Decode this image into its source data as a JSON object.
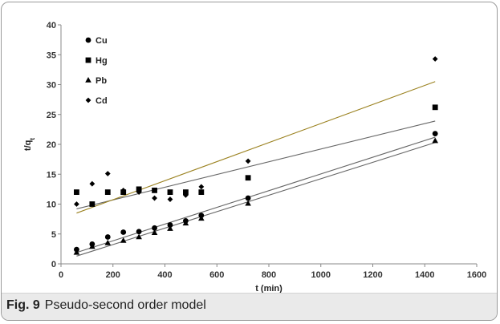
{
  "caption": {
    "label": "Fig. 9",
    "text": "Pseudo-second order model"
  },
  "chart_data": {
    "type": "scatter",
    "title": "",
    "xlabel": "t (min)",
    "ylabel": "t/q_t",
    "xlim": [
      0,
      1600
    ],
    "ylim": [
      0,
      40
    ],
    "xticks": [
      0,
      200,
      400,
      600,
      800,
      1000,
      1200,
      1400,
      1600
    ],
    "yticks": [
      0,
      5,
      10,
      15,
      20,
      25,
      30,
      35,
      40
    ],
    "grid": false,
    "legend_position": "top-left",
    "series": [
      {
        "name": "Cu",
        "marker": "circle",
        "x": [
          60,
          120,
          180,
          240,
          300,
          360,
          420,
          480,
          540,
          720,
          1440
        ],
        "y": [
          2.4,
          3.3,
          4.5,
          5.3,
          5.4,
          6.0,
          6.5,
          7.2,
          8.1,
          11.0,
          21.8
        ],
        "fit": {
          "x": [
            60,
            1440
          ],
          "y": [
            1.9,
            21.2
          ],
          "color": "#666666"
        }
      },
      {
        "name": "Hg",
        "marker": "square",
        "x": [
          60,
          120,
          180,
          240,
          300,
          360,
          420,
          480,
          540,
          720,
          1440
        ],
        "y": [
          12.0,
          10.0,
          12.0,
          12.0,
          12.5,
          12.3,
          12.0,
          12.0,
          12.0,
          14.4,
          26.2
        ],
        "fit": {
          "x": [
            60,
            1440
          ],
          "y": [
            9.2,
            23.9
          ],
          "color": "#666666"
        }
      },
      {
        "name": "Pb",
        "marker": "triangle",
        "x": [
          60,
          120,
          180,
          240,
          300,
          360,
          420,
          480,
          540,
          720,
          1440
        ],
        "y": [
          1.9,
          2.9,
          3.5,
          3.9,
          4.5,
          5.2,
          5.9,
          6.8,
          7.6,
          10.1,
          20.6
        ],
        "fit": {
          "x": [
            60,
            1440
          ],
          "y": [
            1.3,
            20.3
          ],
          "color": "#666666"
        }
      },
      {
        "name": "Cd",
        "marker": "diamond",
        "x": [
          60,
          120,
          180,
          240,
          300,
          360,
          420,
          480,
          540,
          720,
          1440
        ],
        "y": [
          10.0,
          13.4,
          15.1,
          12.3,
          12.0,
          11.0,
          10.8,
          11.5,
          12.9,
          17.2,
          34.3
        ],
        "fit": {
          "x": [
            60,
            1440
          ],
          "y": [
            8.5,
            30.5
          ],
          "color": "#9b8220"
        }
      }
    ]
  }
}
